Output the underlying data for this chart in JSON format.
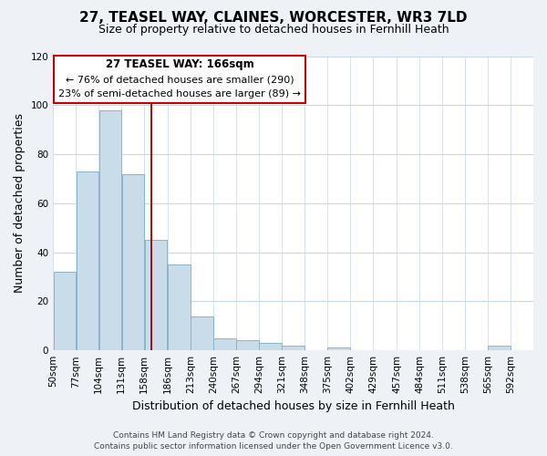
{
  "title": "27, TEASEL WAY, CLAINES, WORCESTER, WR3 7LD",
  "subtitle": "Size of property relative to detached houses in Fernhill Heath",
  "xlabel": "Distribution of detached houses by size in Fernhill Heath",
  "ylabel": "Number of detached properties",
  "bar_color": "#c8dcea",
  "bar_edge_color": "#8ab4cc",
  "bar_left_edges": [
    50,
    77,
    104,
    131,
    158,
    186,
    213,
    240,
    267,
    294,
    321,
    348,
    375,
    402,
    429,
    457,
    484,
    511,
    538,
    565
  ],
  "bar_widths": [
    27,
    27,
    27,
    27,
    27,
    27,
    27,
    27,
    27,
    27,
    27,
    27,
    27,
    27,
    27,
    27,
    27,
    27,
    27,
    27
  ],
  "bar_heights": [
    32,
    73,
    98,
    72,
    45,
    35,
    14,
    5,
    4,
    3,
    2,
    0,
    1,
    0,
    0,
    0,
    0,
    0,
    0,
    2
  ],
  "tick_labels": [
    "50sqm",
    "77sqm",
    "104sqm",
    "131sqm",
    "158sqm",
    "186sqm",
    "213sqm",
    "240sqm",
    "267sqm",
    "294sqm",
    "321sqm",
    "348sqm",
    "375sqm",
    "402sqm",
    "429sqm",
    "457sqm",
    "484sqm",
    "511sqm",
    "538sqm",
    "565sqm",
    "592sqm"
  ],
  "tick_positions": [
    50,
    77,
    104,
    131,
    158,
    186,
    213,
    240,
    267,
    294,
    321,
    348,
    375,
    402,
    429,
    457,
    484,
    511,
    538,
    565,
    592
  ],
  "ylim": [
    0,
    120
  ],
  "xlim": [
    50,
    619
  ],
  "vline_x": 166,
  "vline_color": "#990000",
  "annotation_title": "27 TEASEL WAY: 166sqm",
  "annotation_line1": "← 76% of detached houses are smaller (290)",
  "annotation_line2": "23% of semi-detached houses are larger (89) →",
  "annot_box_color": "white",
  "annot_box_edge_color": "#cc0000",
  "footer_line1": "Contains HM Land Registry data © Crown copyright and database right 2024.",
  "footer_line2": "Contains public sector information licensed under the Open Government Licence v3.0.",
  "bg_color": "#eef2f7",
  "plot_bg_color": "white",
  "grid_color": "#c8d8e8",
  "title_fontsize": 11,
  "subtitle_fontsize": 9,
  "axis_label_fontsize": 9,
  "tick_fontsize": 7.5,
  "annot_fontsize_title": 8.5,
  "annot_fontsize_body": 8,
  "footer_fontsize": 6.5
}
